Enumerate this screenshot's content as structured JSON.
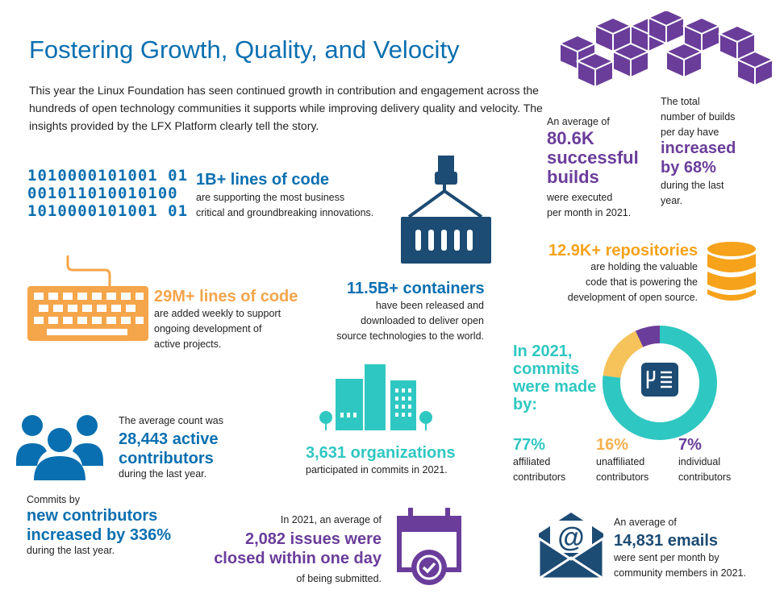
{
  "title": "Fostering Growth, Quality, and Velocity",
  "intro": "This year the Linux Foundation has seen continued growth in contribution and engagement across the hundreds of open technology communities it supports while improving delivery quality and velocity. The insights provided by the LFX Platform clearly tell the story.",
  "colors": {
    "blue": "#0a6fb0",
    "orange": "#f5a54a",
    "purple": "#6a3d9a",
    "yellow": "#f6a21b",
    "teal": "#2fc7c1",
    "navy": "#1c4b73"
  },
  "code": {
    "binary": [
      "1010000101001 01",
      "001011010010100",
      "1010000101001 01"
    ],
    "headline": "1B+ lines of code",
    "desc1": "are supporting the most business",
    "desc2": "critical and groundbreaking innovations."
  },
  "weekly": {
    "headline": "29M+ lines of code",
    "desc1": "are added weekly to support",
    "desc2": "ongoing development of",
    "desc3": "active projects."
  },
  "containers": {
    "headline": "11.5B+ containers",
    "desc1": "have been released and",
    "desc2": "downloaded to deliver open",
    "desc3": "source technologies to the world."
  },
  "builds": {
    "pre": "An average of",
    "headline1": "80.6K",
    "headline2": "successful",
    "headline3": "builds",
    "desc1": "were executed",
    "desc2": "per month in 2021."
  },
  "builds_per_day": {
    "pre1": "The total",
    "pre2": "number of builds",
    "pre3": "per day have",
    "headline1": "increased",
    "headline2": "by 68%",
    "desc1": "during the last",
    "desc2": "year."
  },
  "repos": {
    "headline": "12.9K+ repositories",
    "desc1": "are holding the valuable",
    "desc2": "code that is powering the",
    "desc3": "development of open source."
  },
  "commits": {
    "line1": "In 2021,",
    "line2": "commits",
    "line3": "were made",
    "line4": "by:",
    "donut": {
      "affiliated": 77,
      "unaffiliated": 16,
      "individual": 7
    },
    "stats": [
      {
        "value": "77%",
        "label1": "affiliated",
        "label2": "contributors"
      },
      {
        "value": "16%",
        "label1": "unaffiliated",
        "label2": "contributors"
      },
      {
        "value": "7%",
        "label1": "individual",
        "label2": "contributors"
      }
    ]
  },
  "active": {
    "pre": "The average count was",
    "headline1": "28,443 active",
    "headline2": "contributors",
    "desc": "during the last year."
  },
  "orgs": {
    "headline": "3,631 organizations",
    "desc": "participated in commits in 2021."
  },
  "new_contrib": {
    "pre": "Commits by",
    "headline1": "new contributors",
    "headline2": "increased by 336%",
    "desc": "during the last year."
  },
  "issues": {
    "pre": "In 2021, an average of",
    "headline1": "2,082 issues were",
    "headline2": "closed within one day",
    "desc": "of being submitted."
  },
  "emails": {
    "pre": "An average of",
    "headline": "14,831 emails",
    "desc1": "were sent per month by",
    "desc2": "community members in 2021."
  }
}
